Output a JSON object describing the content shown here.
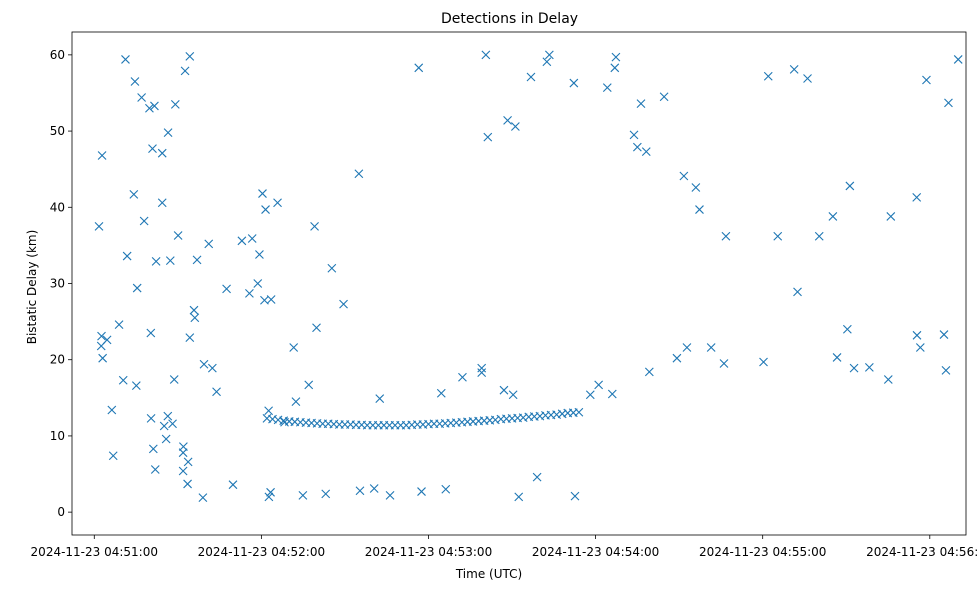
{
  "chart_data": {
    "type": "scatter",
    "title": "Detections in Delay",
    "xlabel": "Time (UTC)",
    "ylabel": "Bistatic Delay (km)",
    "x_unit": "seconds",
    "xlim": [
      -8,
      313
    ],
    "ylim": [
      -3,
      63
    ],
    "x_ticks": [
      0,
      60,
      120,
      180,
      240,
      300
    ],
    "x_tick_labels": [
      "2024-11-23 04:51:00",
      "2024-11-23 04:52:00",
      "2024-11-23 04:53:00",
      "2024-11-23 04:54:00",
      "2024-11-23 04:55:00",
      "2024-11-23 04:56:00"
    ],
    "y_ticks": [
      0,
      10,
      20,
      30,
      40,
      50,
      60
    ],
    "y_tick_labels": [
      "0",
      "10",
      "20",
      "30",
      "40",
      "50",
      "60"
    ],
    "grid": false,
    "marker": "x",
    "color": "#1f77b4",
    "series": [
      {
        "x": [
          11.2,
          2.8,
          1.7,
          26.5,
          29.1,
          14.6,
          32.6,
          34.3,
          19.8,
          17.0,
          21.6,
          14.2,
          17.9,
          20.9,
          24.4,
          24.4,
          22.2,
          27.3,
          30.1,
          36.9,
          41.1,
          35.8,
          47.5,
          53.0,
          56.7,
          59.3,
          61.5,
          60.4,
          65.8,
          61.1,
          63.5,
          79.1,
          95.0,
          116.5,
          148.4,
          151.2,
          141.3,
          140.6,
          156.8,
          162.5,
          186.9,
          184.2,
          187.3,
          198.2,
          211.7,
          216.0,
          217.3,
          226.8,
          245.4,
          252.5,
          260.3,
          271.3,
          265.2,
          286.0,
          295.3,
          298.8,
          310.2,
          306.7,
          256.1,
          251.3,
          242.0,
          204.6,
          196.3,
          195.0,
          193.8,
          163.4,
          172.2,
          85.3,
          89.5,
          79.8,
          71.6,
          20.3,
          34.3,
          55.7,
          58.7,
          36.1,
          11.8,
          15.4,
          4.6,
          2.5,
          3.0,
          2.6,
          8.9,
          10.4,
          15.1,
          20.4,
          6.3,
          21.2,
          21.9,
          31.9,
          33.5,
          33.7,
          28.7,
          42.4,
          39.4,
          43.9,
          62.6,
          68.3,
          77.0,
          72.4,
          102.5,
          124.6,
          132.2,
          139.1,
          139.1,
          147.1,
          150.4,
          178.1,
          181.1,
          186.0,
          199.3,
          209.2,
          221.5,
          212.8,
          226.1,
          240.3,
          272.8,
          278.3,
          285.1,
          305.1,
          296.6,
          295.4,
          305.8,
          266.7,
          270.4,
          172.6,
          159.0,
          152.4,
          126.2,
          117.5,
          100.5,
          106.2,
          95.4,
          83.1,
          74.9,
          62.7,
          63.3,
          49.8,
          39.0,
          6.8,
          26.4,
          31.9,
          28.1,
          32.0,
          25.1,
          25.8
        ],
        "y": [
          59.4,
          46.8,
          37.5,
          49.8,
          53.5,
          56.5,
          57.9,
          59.8,
          53.0,
          54.4,
          53.3,
          41.7,
          38.2,
          47.7,
          47.1,
          40.6,
          32.9,
          33.0,
          36.3,
          33.1,
          35.2,
          26.5,
          29.3,
          35.6,
          35.9,
          33.8,
          39.7,
          41.8,
          40.6,
          27.8,
          27.9,
          37.5,
          44.4,
          58.3,
          51.4,
          50.6,
          49.2,
          60.0,
          57.1,
          59.1,
          58.3,
          55.7,
          59.7,
          47.3,
          44.1,
          42.6,
          39.7,
          36.2,
          36.2,
          28.9,
          36.2,
          42.8,
          38.8,
          38.8,
          41.3,
          56.7,
          59.4,
          53.7,
          56.9,
          58.1,
          57.2,
          54.5,
          53.6,
          47.9,
          49.5,
          60.0,
          56.3,
          32.0,
          27.3,
          24.2,
          21.6,
          23.5,
          22.9,
          28.7,
          30.0,
          25.5,
          33.6,
          29.4,
          22.6,
          21.8,
          20.2,
          23.1,
          24.6,
          17.3,
          16.6,
          12.3,
          13.4,
          8.3,
          5.6,
          5.4,
          3.7,
          6.6,
          17.4,
          18.9,
          19.4,
          15.8,
          13.3,
          11.8,
          16.7,
          14.5,
          14.9,
          15.6,
          17.7,
          18.9,
          18.3,
          16.0,
          15.4,
          15.4,
          16.7,
          15.5,
          18.4,
          20.2,
          21.6,
          21.6,
          19.5,
          19.7,
          18.9,
          19.0,
          17.4,
          23.3,
          21.6,
          23.2,
          18.6,
          20.3,
          24.0,
          2.1,
          4.6,
          2.0,
          3.0,
          2.7,
          3.1,
          2.2,
          2.8,
          2.4,
          2.2,
          2.0,
          2.6,
          3.6,
          1.9,
          7.4,
          12.6,
          7.8,
          11.6,
          8.6,
          11.3,
          9.6
        ]
      },
      {
        "x": [
          62.0,
          64.0,
          66.0,
          68.0,
          70.0,
          72.0,
          74.0,
          76.0,
          78.0,
          80.0,
          82.0,
          84.0,
          86.0,
          88.0,
          90.0,
          92.0,
          94.0,
          96.0,
          98.0,
          100.0,
          102.0,
          104.0,
          106.0,
          108.0,
          110.0,
          112.0,
          114.0,
          116.0,
          118.0,
          120.0,
          122.0,
          124.0,
          126.0,
          128.0,
          130.0,
          132.0,
          134.0,
          136.0,
          138.0,
          140.0,
          142.0,
          144.0,
          146.0,
          148.0,
          150.0,
          152.0,
          154.0,
          156.0,
          158.0,
          160.0,
          162.0,
          164.0,
          166.0,
          168.0,
          170.0,
          172.0,
          174.0
        ],
        "y": [
          12.3,
          12.2,
          12.1,
          12.0,
          11.9,
          11.85,
          11.8,
          11.75,
          11.7,
          11.65,
          11.6,
          11.6,
          11.55,
          11.5,
          11.5,
          11.5,
          11.45,
          11.45,
          11.4,
          11.4,
          11.4,
          11.4,
          11.4,
          11.4,
          11.4,
          11.4,
          11.45,
          11.5,
          11.5,
          11.55,
          11.6,
          11.6,
          11.65,
          11.7,
          11.75,
          11.8,
          11.85,
          11.9,
          11.95,
          12.0,
          12.05,
          12.1,
          12.2,
          12.25,
          12.3,
          12.35,
          12.4,
          12.5,
          12.55,
          12.6,
          12.7,
          12.75,
          12.8,
          12.9,
          13.0,
          13.05,
          13.1
        ]
      }
    ]
  }
}
